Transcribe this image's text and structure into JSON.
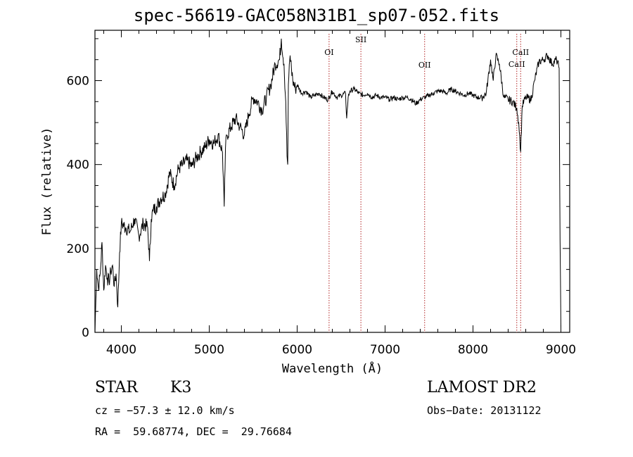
{
  "chart_data": {
    "type": "line",
    "title": "spec-56619-GAC058N31B1_sp07-052.fits",
    "xlabel": "Wavelength (Å)",
    "ylabel": "Flux (relative)",
    "xlim": [
      3700,
      9100
    ],
    "ylim": [
      0,
      720
    ],
    "xticks": [
      4000,
      5000,
      6000,
      7000,
      8000,
      9000
    ],
    "yticks": [
      0,
      200,
      400,
      600
    ],
    "series": [
      {
        "x": [
          3700,
          3720,
          3740,
          3760,
          3780,
          3800,
          3820,
          3840,
          3860,
          3880,
          3900,
          3920,
          3940,
          3960,
          3980,
          4000,
          4050,
          4100,
          4150,
          4200,
          4250,
          4300,
          4320,
          4340,
          4360,
          4400,
          4450,
          4500,
          4550,
          4600,
          4650,
          4700,
          4750,
          4800,
          4850,
          4900,
          4950,
          5000,
          5050,
          5100,
          5150,
          5170,
          5185,
          5200,
          5250,
          5300,
          5350,
          5400,
          5450,
          5500,
          5550,
          5600,
          5650,
          5700,
          5750,
          5800,
          5820,
          5850,
          5870,
          5885,
          5893,
          5900,
          5920,
          5950,
          5980,
          6000,
          6050,
          6100,
          6150,
          6200,
          6250,
          6300,
          6350,
          6400,
          6450,
          6500,
          6550,
          6563,
          6580,
          6600,
          6650,
          6700,
          6750,
          6800,
          6850,
          6900,
          6950,
          7000,
          7050,
          7100,
          7150,
          7200,
          7250,
          7300,
          7350,
          7400,
          7450,
          7500,
          7550,
          7600,
          7650,
          7700,
          7750,
          7800,
          7850,
          7900,
          7950,
          8000,
          8050,
          8100,
          8150,
          8200,
          8230,
          8260,
          8300,
          8350,
          8400,
          8450,
          8498,
          8520,
          8542,
          8560,
          8600,
          8662,
          8700,
          8750,
          8800,
          8850,
          8900,
          8950,
          8980,
          8990,
          9000
        ],
        "y": [
          0,
          150,
          105,
          140,
          215,
          100,
          160,
          130,
          120,
          145,
          160,
          110,
          140,
          60,
          190,
          260,
          250,
          240,
          270,
          230,
          260,
          250,
          170,
          270,
          290,
          300,
          320,
          330,
          380,
          350,
          390,
          400,
          410,
          395,
          415,
          430,
          440,
          460,
          450,
          470,
          430,
          300,
          440,
          470,
          490,
          510,
          490,
          470,
          520,
          560,
          550,
          530,
          560,
          590,
          640,
          650,
          700,
          640,
          550,
          420,
          400,
          590,
          660,
          600,
          580,
          590,
          570,
          575,
          560,
          565,
          570,
          560,
          555,
          575,
          560,
          565,
          570,
          510,
          560,
          575,
          580,
          570,
          565,
          570,
          560,
          565,
          560,
          560,
          555,
          560,
          555,
          560,
          560,
          555,
          545,
          555,
          560,
          565,
          570,
          575,
          575,
          570,
          580,
          575,
          570,
          565,
          570,
          565,
          560,
          560,
          570,
          650,
          600,
          660,
          640,
          560,
          555,
          550,
          535,
          500,
          430,
          540,
          560,
          555,
          600,
          645,
          650,
          660,
          640,
          650,
          630,
          220,
          10
        ]
      }
    ],
    "lines": [
      {
        "label": "OI",
        "x": 6363
      },
      {
        "label": "SII",
        "x": 6725
      },
      {
        "label": "OII",
        "x": 7450
      },
      {
        "label": "CaII",
        "x": 8498
      },
      {
        "label": "CaII",
        "x": 8542
      }
    ]
  },
  "info": {
    "class_label": "STAR",
    "subclass": "K3",
    "survey": "LAMOST DR2",
    "cz": "cz = −57.3 ± 12.0 km/s",
    "obs_date": "Obs−Date: 20131122",
    "radec": "RA =  59.68774, DEC =  29.76684"
  },
  "colors": {
    "spectrum": "#000000",
    "line_markers": "#b22222"
  }
}
